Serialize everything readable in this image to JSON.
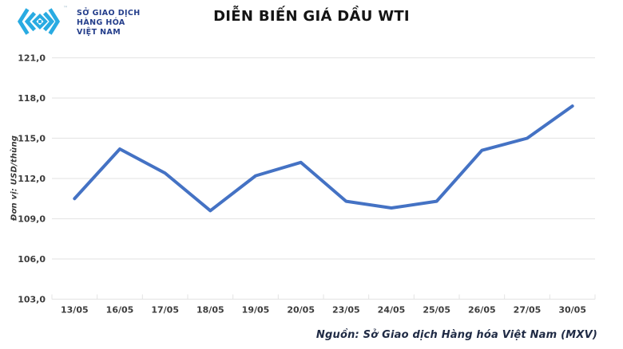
{
  "header": {
    "logo": {
      "text_lines": [
        "SỞ GIAO DỊCH",
        "HÀNG HÓA",
        "VIỆT NAM"
      ],
      "trademark": "™",
      "mark_color": "#29ABE2",
      "text_color": "#243E8B"
    },
    "title": "DIỄN BIẾN GIÁ DẦU WTI"
  },
  "chart_data": {
    "type": "line",
    "title": "DIỄN BIẾN GIÁ DẦU WTI",
    "categories": [
      "13/05",
      "16/05",
      "17/05",
      "18/05",
      "19/05",
      "20/05",
      "23/05",
      "24/05",
      "25/05",
      "26/05",
      "27/05",
      "30/05"
    ],
    "values": [
      110.5,
      114.2,
      112.4,
      109.6,
      112.2,
      113.2,
      110.3,
      109.8,
      110.3,
      114.1,
      115.0,
      117.4
    ],
    "series_name": "Giá dầu WTI",
    "xlabel": "",
    "ylabel": "Đơn vị: USD/thùng",
    "ylim": [
      103,
      121
    ],
    "ytick_step": 3,
    "ytick_labels": [
      "121,0",
      "118,0",
      "115,0",
      "112,0",
      "109,0",
      "106,0",
      "103,0"
    ],
    "grid": true,
    "legend": "none",
    "line_color": "#4472C4",
    "gridline_color": "#E7E7E7",
    "tick_color": "#E3E3E3",
    "label_color": "#3c3c3c"
  },
  "footer": {
    "source": "Nguồn: Sở Giao dịch Hàng hóa Việt Nam (MXV)"
  }
}
